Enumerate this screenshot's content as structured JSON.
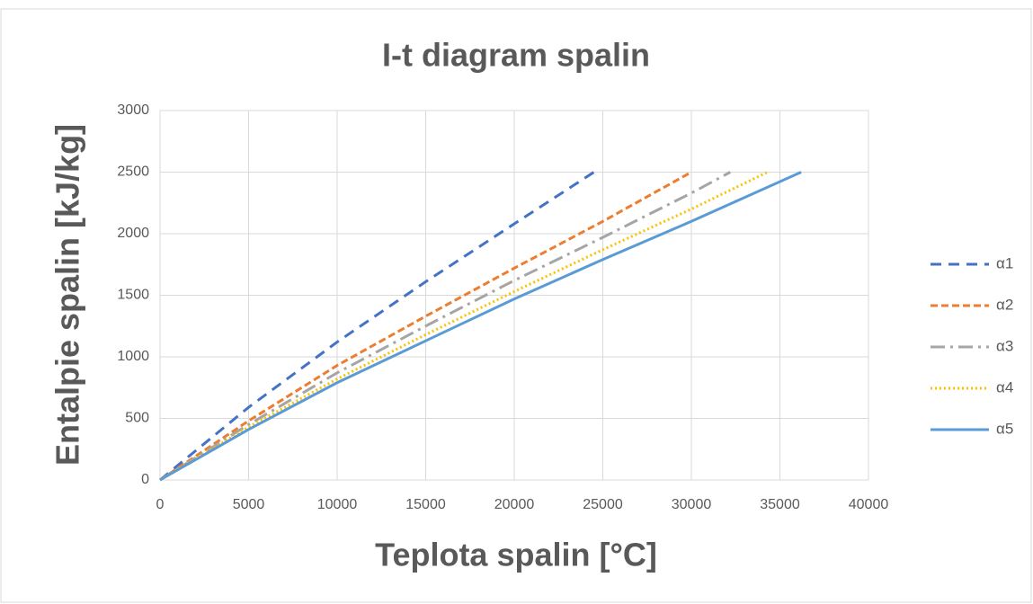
{
  "chart_data": {
    "type": "line",
    "title": "I-t diagram spalin",
    "x_label": "Teplota spalin [°C]",
    "y_label": "Entalpie spalin [kJ/kg]",
    "xlim": [
      0,
      40000
    ],
    "xticks": [
      0,
      5000,
      10000,
      15000,
      20000,
      25000,
      30000,
      35000,
      40000
    ],
    "ylim": [
      0,
      3000
    ],
    "yticks": [
      0,
      500,
      1000,
      1500,
      2000,
      2500,
      3000
    ],
    "grid": true,
    "legend": "right",
    "series": [
      {
        "name": "α1",
        "color": "#4472c4",
        "style": "dash",
        "x": [
          0,
          5000,
          10000,
          15000,
          20000,
          24500
        ],
        "values": [
          0,
          590,
          1120,
          1610,
          2080,
          2500
        ]
      },
      {
        "name": "α2",
        "color": "#ed7d31",
        "style": "short-dash",
        "x": [
          0,
          5000,
          10000,
          15000,
          20000,
          25000,
          30000
        ],
        "values": [
          0,
          480,
          930,
          1330,
          1720,
          2100,
          2500
        ]
      },
      {
        "name": "α3",
        "color": "#a5a5a5",
        "style": "dash-dot",
        "x": [
          0,
          5000,
          10000,
          15000,
          20000,
          25000,
          30000,
          32200
        ],
        "values": [
          0,
          450,
          870,
          1250,
          1620,
          1970,
          2330,
          2500
        ]
      },
      {
        "name": "α4",
        "color": "#ffc000",
        "style": "dot",
        "x": [
          0,
          5000,
          10000,
          15000,
          20000,
          25000,
          30000,
          34300
        ],
        "values": [
          0,
          430,
          820,
          1180,
          1530,
          1870,
          2200,
          2500
        ]
      },
      {
        "name": "α5",
        "color": "#5b9bd5",
        "style": "solid",
        "x": [
          0,
          5000,
          10000,
          15000,
          20000,
          25000,
          30000,
          36200
        ],
        "values": [
          0,
          410,
          790,
          1130,
          1470,
          1790,
          2100,
          2500
        ]
      }
    ]
  }
}
